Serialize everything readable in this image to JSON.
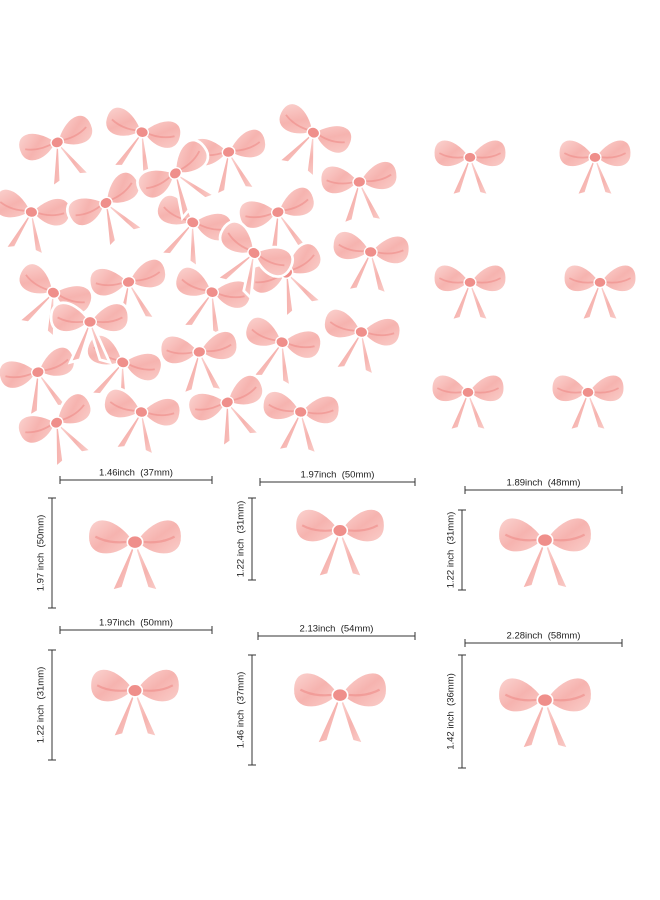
{
  "sizes": [
    {
      "width": "1.46inch  (37mm)",
      "height": "1.97 inch  (50mm)"
    },
    {
      "width": "1.97inch  (50mm)",
      "height": "1.22 inch  (31mm)"
    },
    {
      "width": "1.89inch  (48mm)",
      "height": "1.22 inch  (31mm)"
    },
    {
      "width": "1.97inch  (50mm)",
      "height": "1.22 inch  (31mm)"
    },
    {
      "width": "2.13inch  (54mm)",
      "height": "1.46 inch  (37mm)"
    },
    {
      "width": "2.28inch  (58mm)",
      "height": "1.42 inch  (36mm)"
    }
  ]
}
